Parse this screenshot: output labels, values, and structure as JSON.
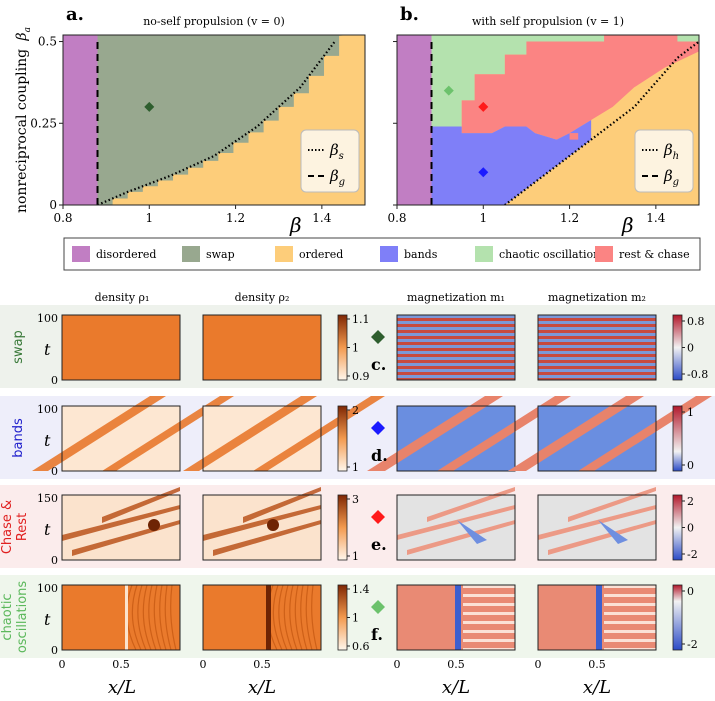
{
  "chart_data": [
    {
      "type": "heatmap",
      "panel_label": "a.",
      "title": "no-self propulsion (v = 0)",
      "xlabel": "β",
      "ylabel": "nonreciprocal coupling β_a",
      "xlim": [
        0.8,
        1.5
      ],
      "ylim": [
        0,
        0.52
      ],
      "xticks": [
        "0.8",
        "1",
        "1.2",
        "1.4"
      ],
      "yticks": [
        "0",
        "0.25",
        "0.5"
      ],
      "regions": [
        "disordered",
        "swap",
        "ordered"
      ],
      "lines": [
        {
          "name": "β_s",
          "style": "dotted",
          "x": [
            0.88,
            0.95,
            1.05,
            1.15,
            1.25,
            1.35,
            1.43
          ],
          "y": [
            0,
            0.04,
            0.09,
            0.15,
            0.24,
            0.36,
            0.5
          ]
        },
        {
          "name": "β_g",
          "style": "dashed",
          "x": [
            0.88,
            0.88
          ],
          "y": [
            0,
            0.5
          ]
        }
      ],
      "markers": [
        {
          "x": 1.0,
          "y": 0.3,
          "color": "#2e5e2e",
          "label": "swap"
        }
      ],
      "boundary_x": [
        0.88,
        0.95,
        1.05,
        1.15,
        1.25,
        1.35,
        1.43
      ],
      "boundary_y": [
        0,
        0.04,
        0.09,
        0.15,
        0.24,
        0.36,
        0.5
      ]
    },
    {
      "type": "heatmap",
      "panel_label": "b.",
      "title": "with self propulsion (v = 1)",
      "xlabel": "β",
      "xlim": [
        0.8,
        1.5
      ],
      "ylim": [
        0,
        0.52
      ],
      "xticks": [
        "0.8",
        "1",
        "1.2",
        "1.4"
      ],
      "regions": [
        "disordered",
        "bands",
        "chaotic oscillations",
        "rest & chase",
        "ordered"
      ],
      "lines": [
        {
          "name": "β_h",
          "style": "dotted",
          "x": [
            1.05,
            1.15,
            1.25,
            1.35,
            1.45,
            1.5
          ],
          "y": [
            0,
            0.1,
            0.2,
            0.3,
            0.45,
            0.5
          ]
        },
        {
          "name": "β_g",
          "style": "dashed",
          "x": [
            0.88,
            0.88
          ],
          "y": [
            0,
            0.5
          ]
        }
      ],
      "markers": [
        {
          "x": 0.92,
          "y": 0.35,
          "color": "#6cc26c",
          "label": "chaotic oscillations"
        },
        {
          "x": 1.0,
          "y": 0.3,
          "color": "#ff1a1a",
          "label": "rest & chase"
        },
        {
          "x": 1.0,
          "y": 0.1,
          "color": "#1a1aff",
          "label": "bands"
        }
      ]
    }
  ],
  "legend": [
    {
      "label": "disordered",
      "color": "#c17ec3"
    },
    {
      "label": "swap",
      "color": "#98a88f"
    },
    {
      "label": "ordered",
      "color": "#fdcd7a"
    },
    {
      "label": "bands",
      "color": "#7f7ff8"
    },
    {
      "label": "chaotic oscillations",
      "color": "#b4e2ae"
    },
    {
      "label": "rest & chase",
      "color": "#fb8483"
    }
  ],
  "columns": [
    "density ρ₁",
    "density ρ₂",
    "magnetization m₁",
    "magnetization m₂"
  ],
  "rows": [
    {
      "label": "swap",
      "label_color": "#3a7a3a",
      "tag": "c.",
      "marker_color": "#2e5e2e",
      "bg": "#eef2ec",
      "tmax": "100",
      "density_ticks": [
        "1.1",
        "1",
        "0.9"
      ],
      "mag_ticks": [
        "0.8",
        "0",
        "-0.8"
      ]
    },
    {
      "label": "bands",
      "label_color": "#1f1fcc",
      "tag": "d.",
      "marker_color": "#1a1aff",
      "bg": "#eeeefa",
      "tmax": "100",
      "density_ticks": [
        "2",
        "1"
      ],
      "mag_ticks": [
        "1",
        "0"
      ]
    },
    {
      "label": "Chase & Rest",
      "label_line1": "Chase &",
      "label_line2": "Rest",
      "label_color": "#e02020",
      "tag": "e.",
      "marker_color": "#ff1a1a",
      "bg": "#fbecec",
      "tmax": "150",
      "density_ticks": [
        "3",
        "1"
      ],
      "mag_ticks": [
        "2",
        "0",
        "-2"
      ]
    },
    {
      "label": "chaotic oscillations",
      "label_line1": "chaotic",
      "label_line2": "oscillations",
      "label_color": "#5cb85c",
      "tag": "f.",
      "marker_color": "#6cc26c",
      "bg": "#eff6ec",
      "tmax": "100",
      "density_ticks": [
        "1.4",
        "1",
        "0.6"
      ],
      "mag_ticks": [
        "0",
        "-2"
      ]
    }
  ],
  "t_label": "t",
  "t_zero": "0",
  "x_ticks": [
    "0",
    "0.5"
  ],
  "x_axis_label": "x/L",
  "beta_axis_label": "β",
  "ylabel_text": "nonreciprocal coupling",
  "ylabel_sub": "β",
  "ylabel_subscript": "a"
}
